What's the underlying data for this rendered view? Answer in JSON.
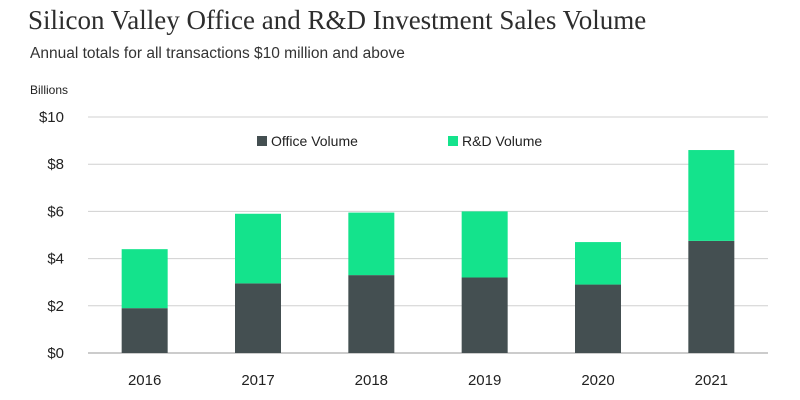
{
  "header": {
    "title": "Silicon Valley Office and R&D Investment Sales Volume",
    "subtitle": "Annual totals for all transactions $10 million and above"
  },
  "chart_data": {
    "type": "bar",
    "stacked": true,
    "categories": [
      "2016",
      "2017",
      "2018",
      "2019",
      "2020",
      "2021"
    ],
    "series": [
      {
        "name": "Office Volume",
        "color": "#444f51",
        "values": [
          1.9,
          2.95,
          3.3,
          3.2,
          2.9,
          4.75
        ]
      },
      {
        "name": "R&D Volume",
        "color": "#14e38c",
        "values": [
          2.5,
          2.95,
          2.65,
          2.8,
          1.8,
          3.85
        ]
      }
    ],
    "ylabel": "Billions",
    "ylim": [
      0,
      10
    ],
    "yticks": [
      0,
      2,
      4,
      6,
      8,
      10
    ],
    "ytick_labels": [
      "$0",
      "$2",
      "$4",
      "$6",
      "$8",
      "$10"
    ],
    "grid": true,
    "legend_position": "top-center"
  }
}
